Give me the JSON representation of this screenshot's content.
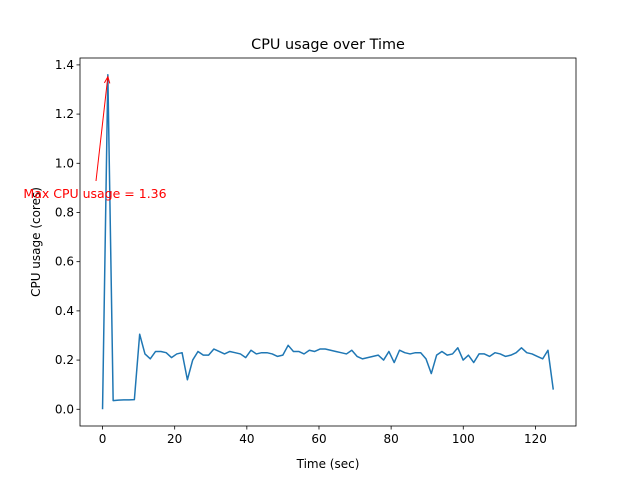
{
  "chart_data": {
    "type": "line",
    "title": "CPU usage over Time",
    "xlabel": "Time (sec)",
    "ylabel": "CPU usage (cores)",
    "annotation": "Max CPU usage = 1.36",
    "annotation_color": "#ff0000",
    "series": [
      {
        "name": "CPU usage",
        "color": "#1f77b4",
        "x": [
          0,
          1.47,
          2.94,
          4.41,
          5.88,
          7.35,
          8.82,
          10.29,
          11.76,
          13.23,
          14.7,
          16.17,
          17.64,
          19.11,
          20.58,
          22.05,
          23.52,
          24.99,
          26.46,
          27.93,
          29.4,
          30.87,
          32.34,
          33.81,
          35.28,
          36.75,
          38.22,
          39.69,
          41.16,
          42.63,
          44.1,
          45.57,
          47.04,
          48.51,
          49.98,
          51.45,
          52.92,
          54.39,
          55.86,
          57.33,
          58.8,
          60.27,
          61.74,
          63.21,
          64.68,
          66.15,
          67.62,
          69.09,
          70.56,
          72.03,
          73.5,
          74.97,
          76.44,
          77.91,
          79.38,
          80.85,
          82.32,
          83.79,
          85.26,
          86.73,
          88.2,
          89.67,
          91.14,
          92.61,
          94.08,
          95.55,
          97.02,
          98.49,
          99.96,
          101.43,
          102.9,
          104.37,
          105.84,
          107.31,
          108.78,
          110.25,
          111.72,
          113.19,
          114.66,
          116.13,
          117.6,
          119.07,
          120.54,
          122.01,
          123.48,
          124.95
        ],
        "values": [
          0,
          1.36,
          0.035,
          0.037,
          0.038,
          0.038,
          0.039,
          0.305,
          0.225,
          0.205,
          0.235,
          0.235,
          0.23,
          0.21,
          0.225,
          0.23,
          0.12,
          0.2,
          0.235,
          0.22,
          0.22,
          0.245,
          0.235,
          0.225,
          0.235,
          0.23,
          0.225,
          0.21,
          0.24,
          0.225,
          0.23,
          0.23,
          0.225,
          0.215,
          0.22,
          0.26,
          0.235,
          0.235,
          0.225,
          0.24,
          0.235,
          0.245,
          0.245,
          0.24,
          0.235,
          0.23,
          0.225,
          0.24,
          0.215,
          0.205,
          0.21,
          0.215,
          0.22,
          0.2,
          0.235,
          0.19,
          0.24,
          0.23,
          0.225,
          0.23,
          0.23,
          0.205,
          0.145,
          0.22,
          0.235,
          0.22,
          0.225,
          0.25,
          0.2,
          0.22,
          0.19,
          0.225,
          0.225,
          0.215,
          0.23,
          0.225,
          0.215,
          0.22,
          0.23,
          0.25,
          0.23,
          0.225,
          0.215,
          0.205,
          0.24,
          0.08
        ]
      }
    ],
    "xlim": [
      -6.25,
      131.25
    ],
    "xticks": [
      0,
      20,
      40,
      60,
      80,
      100,
      120
    ],
    "ylim": [
      -0.068,
      1.428
    ],
    "yticks": [
      {
        "value": 0,
        "label": "0.0"
      },
      0.2,
      0.4,
      0.6,
      0.8,
      {
        "value": 1,
        "label": "1.0"
      },
      1.2,
      1.4
    ],
    "grid": false
  }
}
